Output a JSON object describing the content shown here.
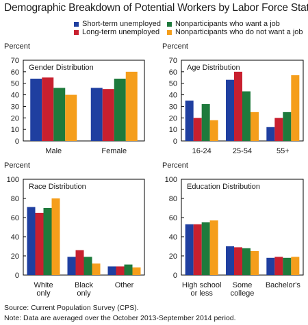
{
  "figure": {
    "title": "Demographic Breakdown of Potential Workers by Labor Force Status",
    "source": "Source: Current Population Survey (CPS).",
    "note": "Note: Data are averaged over the October 2013-September 2014 period."
  },
  "legend": [
    {
      "name": "Short-term unemployed",
      "color": "#1f3fa0"
    },
    {
      "name": "Long-term unemployed",
      "color": "#c8202f"
    },
    {
      "name": "Nonparticipants who want a job",
      "color": "#1e7a3c"
    },
    {
      "name": "Nonparticipants who do not want a job",
      "color": "#f59e1b"
    }
  ],
  "chart_data": [
    {
      "type": "bar",
      "title": "Gender Distribution",
      "ylabel": "Percent",
      "ylim": [
        0,
        70
      ],
      "yticks": [
        0,
        10,
        20,
        30,
        40,
        50,
        60,
        70
      ],
      "categories": [
        [
          "Male"
        ],
        [
          "Female"
        ]
      ],
      "series": [
        {
          "name": "Short-term unemployed",
          "values": [
            54,
            46
          ]
        },
        {
          "name": "Long-term unemployed",
          "values": [
            55,
            45
          ]
        },
        {
          "name": "Nonparticipants who want a job",
          "values": [
            46,
            54
          ]
        },
        {
          "name": "Nonparticipants who do not want a job",
          "values": [
            40,
            60
          ]
        }
      ]
    },
    {
      "type": "bar",
      "title": "Age Distribution",
      "ylabel": "Percent",
      "ylim": [
        0,
        70
      ],
      "yticks": [
        0,
        10,
        20,
        30,
        40,
        50,
        60,
        70
      ],
      "categories": [
        [
          "16-24"
        ],
        [
          "25-54"
        ],
        [
          "55+"
        ]
      ],
      "series": [
        {
          "name": "Short-term unemployed",
          "values": [
            35,
            53,
            12
          ]
        },
        {
          "name": "Long-term unemployed",
          "values": [
            20,
            60,
            20
          ]
        },
        {
          "name": "Nonparticipants who want a job",
          "values": [
            32,
            43,
            25
          ]
        },
        {
          "name": "Nonparticipants who do not want a job",
          "values": [
            18,
            25,
            57
          ]
        }
      ]
    },
    {
      "type": "bar",
      "title": "Race Distribution",
      "ylabel": "Percent",
      "ylim": [
        0,
        100
      ],
      "yticks": [
        0,
        20,
        40,
        60,
        80,
        100
      ],
      "categories": [
        [
          "White",
          "only"
        ],
        [
          "Black",
          "only"
        ],
        [
          "Other"
        ]
      ],
      "series": [
        {
          "name": "Short-term unemployed",
          "values": [
            71,
            19,
            9
          ]
        },
        {
          "name": "Long-term unemployed",
          "values": [
            65,
            26,
            9
          ]
        },
        {
          "name": "Nonparticipants who want a job",
          "values": [
            70,
            19,
            11
          ]
        },
        {
          "name": "Nonparticipants who do not want a job",
          "values": [
            80,
            12,
            8
          ]
        }
      ]
    },
    {
      "type": "bar",
      "title": "Education Distribution",
      "ylabel": "Percent",
      "ylim": [
        0,
        100
      ],
      "yticks": [
        0,
        20,
        40,
        60,
        80,
        100
      ],
      "categories": [
        [
          "High school",
          "or less"
        ],
        [
          "Some",
          "college"
        ],
        [
          "Bachelor's"
        ]
      ],
      "series": [
        {
          "name": "Short-term unemployed",
          "values": [
            53,
            30,
            18
          ]
        },
        {
          "name": "Long-term unemployed",
          "values": [
            53,
            29,
            19
          ]
        },
        {
          "name": "Nonparticipants who want a job",
          "values": [
            55,
            28,
            18
          ]
        },
        {
          "name": "Nonparticipants who do not want a job",
          "values": [
            57,
            25,
            19
          ]
        }
      ]
    }
  ]
}
